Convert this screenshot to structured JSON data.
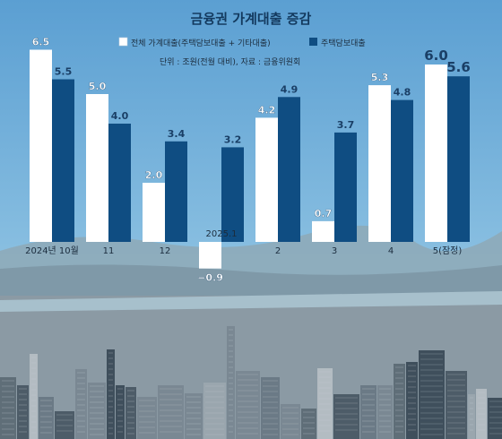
{
  "chart_data": {
    "type": "bar",
    "title": "금융권 가계대출 증감",
    "unit_note": "단위 : 조원(전월 대비), 자료 : 금융위원회",
    "categories": [
      "2024년 10월",
      "11",
      "12",
      "2025.1",
      "2",
      "3",
      "4",
      "5(잠정)"
    ],
    "series": [
      {
        "name": "전체 가계대출(주택담보대출 + 기타대출)",
        "color": "#ffffff",
        "values": [
          6.5,
          5.0,
          2.0,
          -0.9,
          4.2,
          0.7,
          5.3,
          6.0
        ],
        "labels": [
          "6.5",
          "5.0",
          "2.0",
          "−0.9",
          "4.2",
          "0.7",
          "5.3",
          "6.0"
        ]
      },
      {
        "name": "주택담보대출",
        "color": "#0f4d82",
        "values": [
          5.5,
          4.0,
          3.4,
          3.2,
          4.9,
          3.7,
          4.8,
          5.6
        ],
        "labels": [
          "5.5",
          "4.0",
          "3.4",
          "3.2",
          "4.9",
          "3.7",
          "4.8",
          "5.6"
        ]
      }
    ],
    "ylim": [
      -1.5,
      7.0
    ],
    "grid": false,
    "legend": "top-right",
    "highlight_last": true,
    "label_color": "#1a3f66",
    "background": "city skyline photo under blue sky"
  }
}
